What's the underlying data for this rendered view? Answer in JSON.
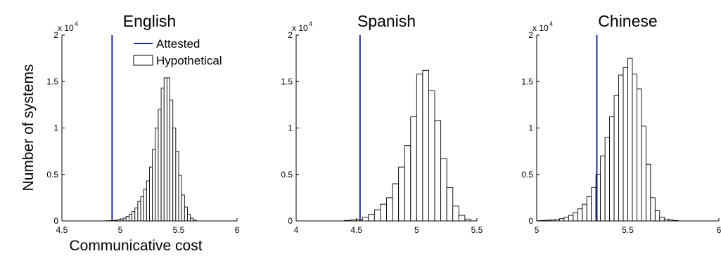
{
  "figure": {
    "ylabel": "Number of systems",
    "xlabel": "Communicative cost",
    "scale_label": "x 10",
    "scale_exponent": "4"
  },
  "legend": {
    "attested": "Attested",
    "hypothetical": "Hypothetical",
    "placement": "top-right of first panel"
  },
  "colors": {
    "attested": "#1f2f8a",
    "bars": "#000000"
  },
  "chart_data": [
    {
      "type": "bar",
      "title": "English",
      "xlim": [
        4.5,
        6
      ],
      "ylim": [
        0,
        20000
      ],
      "xticks": [
        "4.5",
        "5",
        "5.5",
        "6"
      ],
      "xtick_values": [
        4.5,
        5,
        5.5,
        6
      ],
      "yticks": [
        "0",
        "0.5",
        "1",
        "1.5",
        "2"
      ],
      "ytick_values": [
        0,
        5000,
        10000,
        15000,
        20000
      ],
      "attested": 4.93,
      "bin_width": 0.025,
      "bin_starts": [
        4.875,
        4.9,
        4.925,
        4.95,
        4.975,
        5.0,
        5.025,
        5.05,
        5.075,
        5.1,
        5.125,
        5.15,
        5.175,
        5.2,
        5.225,
        5.25,
        5.275,
        5.3,
        5.325,
        5.35,
        5.375,
        5.4,
        5.425,
        5.45,
        5.475,
        5.5,
        5.525,
        5.55,
        5.575,
        5.6,
        5.625
      ],
      "values": [
        20,
        30,
        50,
        70,
        110,
        200,
        300,
        500,
        700,
        1000,
        1400,
        2100,
        2600,
        3400,
        4300,
        5800,
        7700,
        10000,
        12000,
        14300,
        15400,
        15400,
        13000,
        10000,
        7500,
        4900,
        2800,
        1500,
        700,
        300,
        100
      ]
    },
    {
      "type": "bar",
      "title": "Spanish",
      "xlim": [
        4,
        5.5
      ],
      "ylim": [
        0,
        20000
      ],
      "xticks": [
        "4",
        "4.5",
        "5",
        "5.5"
      ],
      "xtick_values": [
        4,
        4.5,
        5,
        5.5
      ],
      "yticks": [
        "0",
        "0.5",
        "1",
        "1.5",
        "2"
      ],
      "ytick_values": [
        0,
        5000,
        10000,
        15000,
        20000
      ],
      "attested": 4.53,
      "bin_width": 0.05,
      "bin_starts": [
        4.4,
        4.45,
        4.5,
        4.55,
        4.6,
        4.65,
        4.7,
        4.75,
        4.8,
        4.85,
        4.9,
        4.95,
        5.0,
        5.05,
        5.1,
        5.15,
        5.2,
        5.25,
        5.3,
        5.35,
        5.4
      ],
      "values": [
        50,
        100,
        150,
        400,
        700,
        1200,
        1800,
        2500,
        4000,
        5800,
        8100,
        11200,
        15800,
        16200,
        14000,
        10800,
        6700,
        3600,
        1600,
        600,
        200
      ]
    },
    {
      "type": "bar",
      "title": "Chinese",
      "xlim": [
        5,
        6
      ],
      "ylim": [
        0,
        20000
      ],
      "xticks": [
        "5",
        "5.5",
        "6"
      ],
      "xtick_values": [
        5,
        5.5,
        6
      ],
      "yticks": [
        "0",
        "0.5",
        "1",
        "1.5",
        "2"
      ],
      "ytick_values": [
        0,
        5000,
        10000,
        15000,
        20000
      ],
      "attested": 5.33,
      "bin_width": 0.025,
      "bin_starts": [
        5.0,
        5.025,
        5.05,
        5.075,
        5.1,
        5.125,
        5.15,
        5.175,
        5.2,
        5.225,
        5.25,
        5.275,
        5.3,
        5.325,
        5.35,
        5.375,
        5.4,
        5.425,
        5.45,
        5.475,
        5.5,
        5.525,
        5.55,
        5.575,
        5.6,
        5.625,
        5.65,
        5.675,
        5.7,
        5.725,
        5.75
      ],
      "values": [
        30,
        50,
        80,
        100,
        150,
        250,
        400,
        600,
        900,
        1300,
        1800,
        2600,
        3600,
        5000,
        7000,
        9000,
        11200,
        13500,
        15700,
        16500,
        17500,
        15800,
        14200,
        10200,
        6100,
        2500,
        1100,
        400,
        200,
        100,
        50
      ]
    }
  ]
}
